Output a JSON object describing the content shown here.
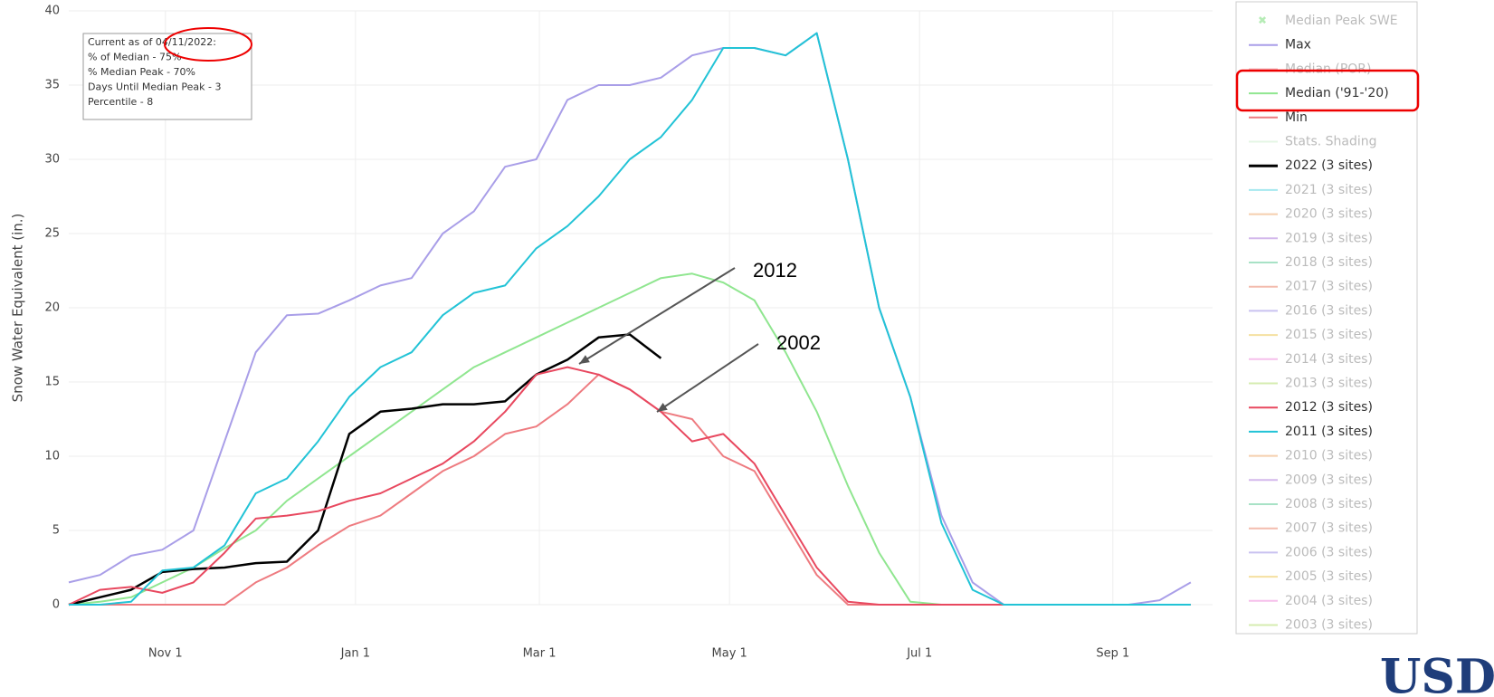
{
  "chart_data": {
    "type": "line",
    "y_label": "Snow Water Equivalent (in.)",
    "info_box": [
      "Current as of 04/11/2022:",
      "% of Median - 75%",
      "% Median Peak - 70%",
      "Days Until Median Peak - 3",
      "Percentile - 8"
    ],
    "annotations": [
      "2012",
      "2002"
    ],
    "logo": "USDA",
    "xlim": [
      0,
      367
    ],
    "xticks": [
      {
        "value": 31,
        "label": "Nov 1"
      },
      {
        "value": 92,
        "label": "Jan 1"
      },
      {
        "value": 151,
        "label": "Mar 1"
      },
      {
        "value": 212,
        "label": "May 1"
      },
      {
        "value": 273,
        "label": "Jul 1"
      },
      {
        "value": 335,
        "label": "Sep 1"
      }
    ],
    "ylim": [
      0,
      40
    ],
    "yticks": [
      0,
      5,
      10,
      15,
      20,
      25,
      30,
      35,
      40
    ],
    "grid": true,
    "x": [
      0,
      10,
      20,
      30,
      40,
      50,
      60,
      70,
      80,
      90,
      100,
      110,
      120,
      130,
      140,
      150,
      160,
      170,
      180,
      190,
      200,
      210,
      220,
      230,
      240,
      250,
      260,
      270,
      280,
      290,
      300,
      310,
      320,
      330,
      340,
      350,
      360
    ],
    "series": [
      {
        "name": "Median Peak SWE",
        "color": "#b6ecb6",
        "visible": false,
        "marker": "x"
      },
      {
        "name": "Max",
        "color": "#a99ee8",
        "visible": true,
        "values": [
          1.5,
          2,
          3.3,
          3.7,
          5,
          11,
          17,
          19.5,
          19.6,
          20.5,
          21.5,
          22,
          25,
          26.5,
          29.5,
          30,
          34,
          35,
          35,
          35.5,
          37,
          37.5,
          37.5,
          37,
          38.5,
          30,
          20,
          14,
          6,
          1.5,
          0,
          0,
          0,
          0,
          0,
          0.3,
          1.5
        ]
      },
      {
        "name": "Median (POR)",
        "color": "#f3c6cc",
        "visible": false
      },
      {
        "name": "Median ('91-'20)",
        "color": "#90e690",
        "visible": true,
        "values": [
          0,
          0.2,
          0.5,
          1.5,
          2.5,
          3.8,
          5,
          7,
          8.5,
          10,
          11.5,
          13,
          14.5,
          16,
          17,
          18,
          19,
          20,
          21,
          22,
          22.3,
          21.7,
          20.5,
          17,
          13,
          8,
          3.5,
          0.2,
          0,
          0,
          0,
          0,
          0,
          0,
          0,
          0,
          0
        ]
      },
      {
        "name": "Min",
        "color": "#ee7b80",
        "visible": true,
        "values": [
          0,
          0,
          0,
          0,
          0,
          0,
          1.5,
          2.5,
          4,
          5.3,
          6,
          7.5,
          9,
          10,
          11.5,
          12,
          13.5,
          15.5,
          14.5,
          13,
          12.5,
          10,
          9,
          5.5,
          2,
          0,
          0,
          0,
          0,
          0,
          0,
          0,
          0,
          0,
          0,
          0,
          0
        ]
      },
      {
        "name": "Stats. Shading",
        "color": "#e4f6e4",
        "visible": false
      },
      {
        "name": "2022 (3 sites)",
        "color": "#000000",
        "visible": true,
        "values": [
          0,
          0.5,
          1,
          2.2,
          2.4,
          2.5,
          2.8,
          2.9,
          5,
          11.5,
          13,
          13.2,
          13.5,
          13.5,
          13.7,
          15.5,
          16.5,
          18,
          18.2,
          16.6,
          null,
          null,
          null,
          null,
          null,
          null,
          null,
          null,
          null,
          null,
          null,
          null,
          null,
          null,
          null,
          null,
          null
        ]
      },
      {
        "name": "2021 (3 sites)",
        "color": "#a6e8ef",
        "visible": false
      },
      {
        "name": "2020 (3 sites)",
        "color": "#f5cfae",
        "visible": false
      },
      {
        "name": "2019 (3 sites)",
        "color": "#d3b8ec",
        "visible": false
      },
      {
        "name": "2018 (3 sites)",
        "color": "#a8e2c6",
        "visible": false
      },
      {
        "name": "2017 (3 sites)",
        "color": "#f3bcae",
        "visible": false
      },
      {
        "name": "2016 (3 sites)",
        "color": "#c9c2f0",
        "visible": false
      },
      {
        "name": "2015 (3 sites)",
        "color": "#f5e0a0",
        "visible": false
      },
      {
        "name": "2014 (3 sites)",
        "color": "#f6c0ec",
        "visible": false
      },
      {
        "name": "2013 (3 sites)",
        "color": "#d6ecb0",
        "visible": false
      },
      {
        "name": "2012 (3 sites)",
        "color": "#e8485f",
        "visible": true,
        "values": [
          0,
          1,
          1.2,
          0.8,
          1.5,
          3.5,
          5.8,
          6,
          6.3,
          7,
          7.5,
          8.5,
          9.5,
          11,
          13,
          15.5,
          16,
          15.5,
          14.5,
          13,
          11,
          11.5,
          9.5,
          6,
          2.5,
          0.2,
          0,
          0,
          0,
          0,
          0,
          0,
          0,
          0,
          0,
          0,
          0
        ]
      },
      {
        "name": "2011 (3 sites)",
        "color": "#22c3d6",
        "visible": true,
        "values": [
          0,
          0,
          0.2,
          2.3,
          2.5,
          4,
          7.5,
          8.5,
          11,
          14,
          16,
          17,
          19.5,
          21,
          21.5,
          24,
          25.5,
          27.5,
          30,
          31.5,
          34,
          37.5,
          37.5,
          37,
          38.5,
          30,
          20,
          14,
          5.5,
          1,
          0,
          0,
          0,
          0,
          0,
          0,
          0
        ]
      },
      {
        "name": "2010 (3 sites)",
        "color": "#f5cfae",
        "visible": false
      },
      {
        "name": "2009 (3 sites)",
        "color": "#d3b8ec",
        "visible": false
      },
      {
        "name": "2008 (3 sites)",
        "color": "#a8e2c6",
        "visible": false
      },
      {
        "name": "2007 (3 sites)",
        "color": "#f3bcae",
        "visible": false
      },
      {
        "name": "2006 (3 sites)",
        "color": "#c9c2f0",
        "visible": false
      },
      {
        "name": "2005 (3 sites)",
        "color": "#f5e0a0",
        "visible": false
      },
      {
        "name": "2004 (3 sites)",
        "color": "#f6c0ec",
        "visible": false
      },
      {
        "name": "2003 (3 sites)",
        "color": "#d6ecb0",
        "visible": false
      }
    ]
  }
}
